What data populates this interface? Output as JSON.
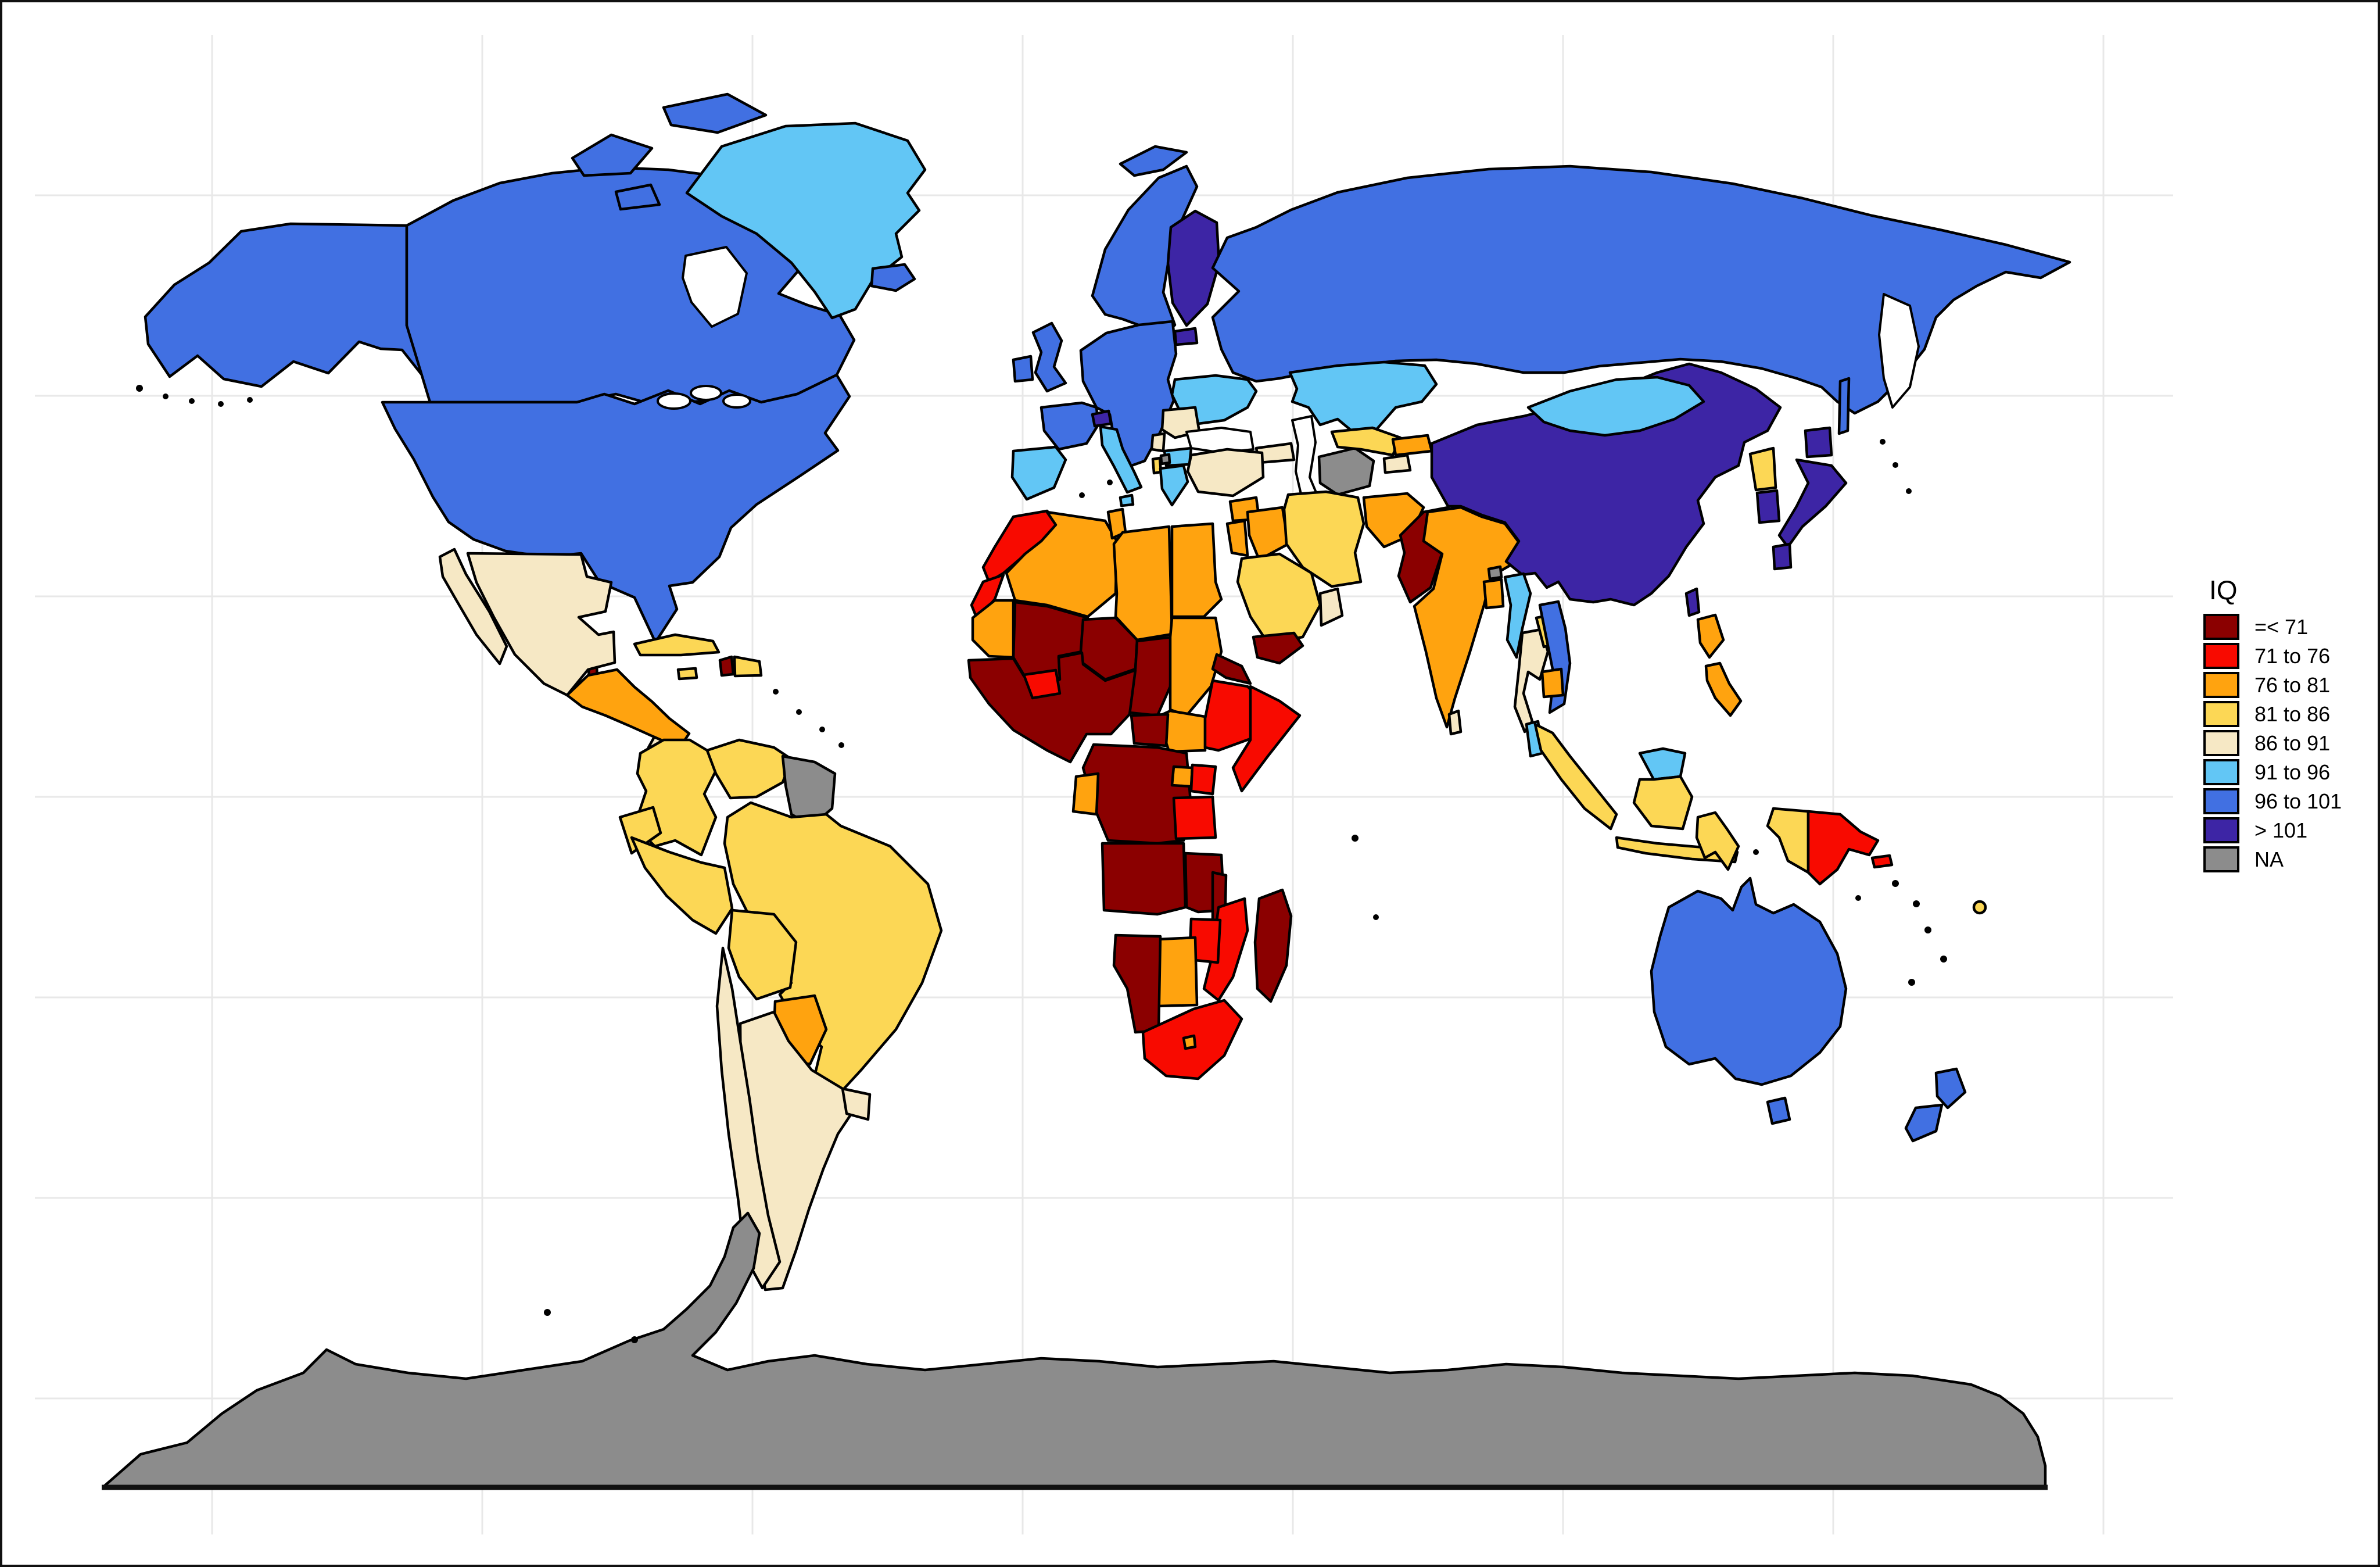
{
  "legend": {
    "title": "IQ",
    "entries": [
      {
        "label": "=< 71",
        "color": "#8B0000"
      },
      {
        "label": "71 to 76",
        "color": "#F80A00"
      },
      {
        "label": "76 to 81",
        "color": "#FFA30F"
      },
      {
        "label": "81 to 86",
        "color": "#FCD755"
      },
      {
        "label": "86 to 91",
        "color": "#F6E8C5"
      },
      {
        "label": "91 to 96",
        "color": "#62C6F5"
      },
      {
        "label": "96 to 101",
        "color": "#4170E2"
      },
      {
        "label": "> 101",
        "color": "#3D25A5"
      },
      {
        "label": "NA",
        "color": "#8C8C8C"
      }
    ]
  },
  "map": {
    "type": "choropleth",
    "variable": "IQ",
    "regions": {
      "alaska": "96 to 101",
      "canada": "96 to 101",
      "arctic-island-1": "96 to 101",
      "arctic-island-2": "96 to 101",
      "arctic-island-3": "96 to 101",
      "arctic-island-4": "96 to 101",
      "usa": "96 to 101",
      "iceland": "96 to 101",
      "uk": "96 to 101",
      "ireland": "96 to 101",
      "france": "96 to 101",
      "central-europe": "96 to 101",
      "denmark": "96 to 101",
      "norway-sweden": "96 to 101",
      "svalbard": "96 to 101",
      "russia": "96 to 101",
      "sakhalin": "96 to 101",
      "vietnam": "96 to 101",
      "australia": "96 to 101",
      "tasmania": "96 to 101",
      "nz-north": "96 to 101",
      "nz-south": "96 to 101",
      "greenland": "91 to 96",
      "iberia": "91 to 96",
      "italy": "91 to 96",
      "sicily": "91 to 96",
      "ukraine": "91 to 96",
      "bulgaria": "91 to 96",
      "greece": "91 to 96",
      "kazakhstan": "91 to 96",
      "mongolia": "91 to 96",
      "myanmar": "91 to 96",
      "malaysia-pen": "91 to 96",
      "borneo-malaysia": "91 to 96",
      "finland": "> 101",
      "estonia": "> 101",
      "switzerland": "> 101",
      "china": "> 101",
      "south-korea": "> 101",
      "japan-hokkaido": "> 101",
      "japan-honshu": "> 101",
      "japan-kyushu": "> 101",
      "taiwan": "> 101",
      "mexico": "86 to 91",
      "costa-rica": "86 to 91",
      "chile": "86 to 91",
      "argentina": "86 to 91",
      "uruguay": "86 to 91",
      "romania": "86 to 91",
      "serbia": "86 to 91",
      "turkey": "86 to 91",
      "caucasus": "86 to 91",
      "tajikistan": "86 to 91",
      "thailand": "86 to 91",
      "sri-lanka": "86 to 91",
      "oman": "86 to 91",
      "cuba": "81 to 86",
      "dominican-republic": "81 to 86",
      "jamaica": "81 to 86",
      "colombia": "81 to 86",
      "venezuela": "81 to 86",
      "ecuador": "81 to 86",
      "peru": "81 to 86",
      "brazil": "81 to 86",
      "bolivia": "81 to 86",
      "iran": "81 to 86",
      "saudi-arabia": "81 to 86",
      "uzbekistan": "81 to 86",
      "laos": "81 to 86",
      "north-korea": "81 to 86",
      "sumatra": "81 to 86",
      "java": "81 to 86",
      "borneo-indonesia": "81 to 86",
      "sulawesi": "81 to 86",
      "west-papua": "81 to 86",
      "albania": "81 to 86",
      "fiji": "81 to 86",
      "central-america": "76 to 81",
      "panama": "76 to 81",
      "paraguay": "76 to 81",
      "mauritania": "76 to 81",
      "algeria": "76 to 81",
      "tunisia": "76 to 81",
      "libya": "76 to 81",
      "egypt": "76 to 81",
      "sudan": "76 to 81",
      "south-sudan": "76 to 81",
      "gabon": "76 to 81",
      "uganda": "76 to 81",
      "botswana": "76 to 81",
      "lesotho": "76 to 81",
      "syria": "76 to 81",
      "iraq": "76 to 81",
      "jordan-israel": "76 to 81",
      "afghanistan": "76 to 81",
      "kyrgyzstan": "76 to 81",
      "india": "76 to 81",
      "bangladesh": "76 to 81",
      "cambodia": "76 to 81",
      "philippines-luzon": "76 to 81",
      "philippines-south": "76 to 81",
      "morocco": "71 to 76",
      "western-sahara": "71 to 76",
      "burkina-faso": "71 to 76",
      "ethiopia": "71 to 76",
      "somalia": "71 to 76",
      "kenya": "71 to 76",
      "tanzania": "71 to 76",
      "mozambique": "71 to 76",
      "zimbabwe": "71 to 76",
      "south-africa": "71 to 76",
      "papua-new-guinea": "71 to 76",
      "new-britain": "71 to 76",
      "belize": "=< 71",
      "haiti": "=< 71",
      "west-africa": "=< 71",
      "mali": "=< 71",
      "niger": "=< 71",
      "chad": "=< 71",
      "eritrea": "=< 71",
      "car": "=< 71",
      "drc": "=< 71",
      "angola": "=< 71",
      "zambia": "=< 71",
      "malawi": "=< 71",
      "namibia": "=< 71",
      "madagascar": "=< 71",
      "yemen": "=< 71",
      "pakistan": "=< 71",
      "guyana-suriname": "NA",
      "turkmenistan": "NA",
      "bhutan": "NA",
      "macedonia": "NA",
      "antarctica": "NA"
    }
  }
}
